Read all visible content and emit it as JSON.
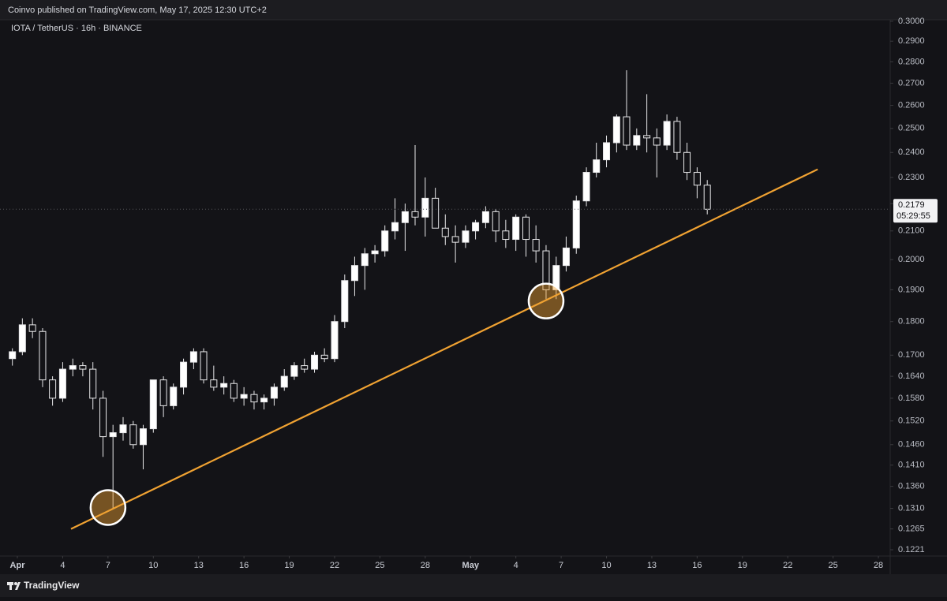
{
  "header": "Coinvo published on TradingView.com, May 17, 2025 12:30 UTC+2",
  "footer": {
    "brand": "TradingView"
  },
  "chart_data": {
    "type": "candlestick",
    "title": "IOTA / TetherUS · 16h · BINANCE",
    "yscale": "log",
    "grid": false,
    "up_color": "#ffffff",
    "down_color": "#131317",
    "x": [
      0.67,
      1.33,
      2,
      2.67,
      3.33,
      4,
      4.67,
      5.33,
      6,
      6.67,
      7.33,
      8,
      8.67,
      9.33,
      10,
      10.67,
      11.33,
      12,
      12.67,
      13.33,
      14,
      14.67,
      15.33,
      16,
      16.67,
      17.33,
      18,
      18.67,
      19.33,
      20,
      20.67,
      21.33,
      22,
      22.67,
      23.33,
      24,
      24.67,
      25.33,
      26,
      26.67,
      27.33,
      28,
      28.67,
      29.33,
      30,
      30.67,
      31.33,
      32,
      32.67,
      33.33,
      34,
      34.67,
      35.33,
      36,
      36.67,
      37.33,
      38,
      38.67,
      39.33,
      40,
      40.67,
      41.33,
      42,
      42.67,
      43.33,
      44,
      44.67,
      45.33,
      46,
      46.67
    ],
    "open": [
      0.169,
      0.171,
      0.179,
      0.177,
      0.163,
      0.158,
      0.166,
      0.167,
      0.166,
      0.158,
      0.148,
      0.149,
      0.151,
      0.146,
      0.15,
      0.163,
      0.156,
      0.161,
      0.168,
      0.171,
      0.163,
      0.161,
      0.162,
      0.158,
      0.159,
      0.157,
      0.158,
      0.161,
      0.164,
      0.167,
      0.166,
      0.17,
      0.169,
      0.18,
      0.193,
      0.198,
      0.202,
      0.203,
      0.21,
      0.213,
      0.217,
      0.215,
      0.222,
      0.211,
      0.208,
      0.206,
      0.21,
      0.213,
      0.217,
      0.21,
      0.207,
      0.215,
      0.207,
      0.203,
      0.19,
      0.198,
      0.204,
      0.221,
      0.232,
      0.237,
      0.244,
      0.255,
      0.243,
      0.247,
      0.246,
      0.243,
      0.253,
      0.24,
      0.232,
      0.227
    ],
    "high": [
      0.172,
      0.181,
      0.181,
      0.178,
      0.164,
      0.168,
      0.169,
      0.168,
      0.168,
      0.16,
      0.151,
      0.153,
      0.152,
      0.151,
      0.163,
      0.164,
      0.162,
      0.169,
      0.172,
      0.172,
      0.167,
      0.164,
      0.163,
      0.161,
      0.16,
      0.159,
      0.162,
      0.166,
      0.168,
      0.169,
      0.171,
      0.172,
      0.182,
      0.195,
      0.201,
      0.204,
      0.205,
      0.212,
      0.222,
      0.22,
      0.243,
      0.23,
      0.226,
      0.216,
      0.212,
      0.212,
      0.214,
      0.219,
      0.218,
      0.214,
      0.216,
      0.216,
      0.212,
      0.205,
      0.201,
      0.208,
      0.223,
      0.234,
      0.244,
      0.247,
      0.256,
      0.276,
      0.25,
      0.265,
      0.25,
      0.256,
      0.255,
      0.244,
      0.234,
      0.229
    ],
    "low": [
      0.167,
      0.17,
      0.175,
      0.161,
      0.156,
      0.157,
      0.164,
      0.164,
      0.155,
      0.143,
      0.131,
      0.147,
      0.145,
      0.14,
      0.149,
      0.153,
      0.155,
      0.159,
      0.166,
      0.162,
      0.16,
      0.159,
      0.157,
      0.156,
      0.155,
      0.155,
      0.156,
      0.16,
      0.163,
      0.165,
      0.165,
      0.168,
      0.168,
      0.178,
      0.188,
      0.19,
      0.199,
      0.201,
      0.207,
      0.203,
      0.212,
      0.208,
      0.211,
      0.205,
      0.199,
      0.204,
      0.207,
      0.211,
      0.206,
      0.204,
      0.203,
      0.201,
      0.199,
      0.187,
      0.187,
      0.196,
      0.202,
      0.219,
      0.23,
      0.234,
      0.24,
      0.241,
      0.241,
      0.24,
      0.23,
      0.241,
      0.237,
      0.229,
      0.222,
      0.216
    ],
    "close": [
      0.171,
      0.179,
      0.177,
      0.163,
      0.158,
      0.166,
      0.167,
      0.166,
      0.158,
      0.148,
      0.149,
      0.151,
      0.146,
      0.15,
      0.163,
      0.156,
      0.161,
      0.168,
      0.171,
      0.163,
      0.161,
      0.162,
      0.158,
      0.159,
      0.157,
      0.158,
      0.161,
      0.164,
      0.167,
      0.166,
      0.17,
      0.169,
      0.18,
      0.193,
      0.198,
      0.202,
      0.203,
      0.21,
      0.213,
      0.217,
      0.215,
      0.222,
      0.211,
      0.208,
      0.206,
      0.21,
      0.213,
      0.217,
      0.21,
      0.207,
      0.215,
      0.207,
      0.203,
      0.19,
      0.198,
      0.204,
      0.221,
      0.232,
      0.237,
      0.244,
      0.255,
      0.243,
      0.247,
      0.246,
      0.243,
      0.253,
      0.24,
      0.232,
      0.227,
      0.2179
    ],
    "xlim": [
      -0.15,
      58.78
    ],
    "xticks": [
      {
        "value": 1,
        "label": "Apr"
      },
      4,
      7,
      10,
      13,
      16,
      19,
      22,
      25,
      28,
      {
        "value": 31,
        "label": "May"
      },
      {
        "value": 34,
        "label": "4"
      },
      {
        "value": 37,
        "label": "7"
      },
      {
        "value": 40,
        "label": "10"
      },
      {
        "value": 43,
        "label": "13"
      },
      {
        "value": 46,
        "label": "16"
      },
      {
        "value": 49,
        "label": "19"
      },
      {
        "value": 52,
        "label": "22"
      },
      {
        "value": 55,
        "label": "25"
      },
      {
        "value": 58,
        "label": "28"
      }
    ],
    "ylim": [
      0.1208,
      0.3028
    ],
    "yticks": [
      {
        "value": 0.3,
        "label": "0.3000"
      },
      {
        "value": 0.29,
        "label": "0.2900"
      },
      {
        "value": 0.28,
        "label": "0.2800"
      },
      {
        "value": 0.27,
        "label": "0.2700"
      },
      {
        "value": 0.26,
        "label": "0.2600"
      },
      {
        "value": 0.25,
        "label": "0.2500"
      },
      {
        "value": 0.24,
        "label": "0.2400"
      },
      {
        "value": 0.23,
        "label": "0.2300"
      },
      {
        "value": 0.22,
        "label": "0.2200"
      },
      {
        "value": 0.21,
        "label": "0.2100"
      },
      {
        "value": 0.2,
        "label": "0.2000"
      },
      {
        "value": 0.19,
        "label": "0.1900"
      },
      {
        "value": 0.18,
        "label": "0.1800"
      },
      {
        "value": 0.17,
        "label": "0.1700"
      },
      {
        "value": 0.164,
        "label": "0.1640"
      },
      {
        "value": 0.158,
        "label": "0.1580"
      },
      {
        "value": 0.152,
        "label": "0.1520"
      },
      {
        "value": 0.146,
        "label": "0.1460"
      },
      {
        "value": 0.141,
        "label": "0.1410"
      },
      {
        "value": 0.136,
        "label": "0.1360"
      },
      {
        "value": 0.131,
        "label": "0.1310"
      },
      {
        "value": 0.1265,
        "label": "0.1265"
      },
      {
        "value": 0.1221,
        "label": "0.1221"
      }
    ],
    "trendline": {
      "x": [
        4.55,
        53.98
      ],
      "y": [
        0.1265,
        0.2332
      ],
      "color": "#f0a232"
    },
    "highlights": [
      {
        "x": 7.0,
        "y": 0.1312
      },
      {
        "x": 36.0,
        "y": 0.1864
      }
    ],
    "last_price": 0.2179,
    "countdown": "05:29:55"
  }
}
